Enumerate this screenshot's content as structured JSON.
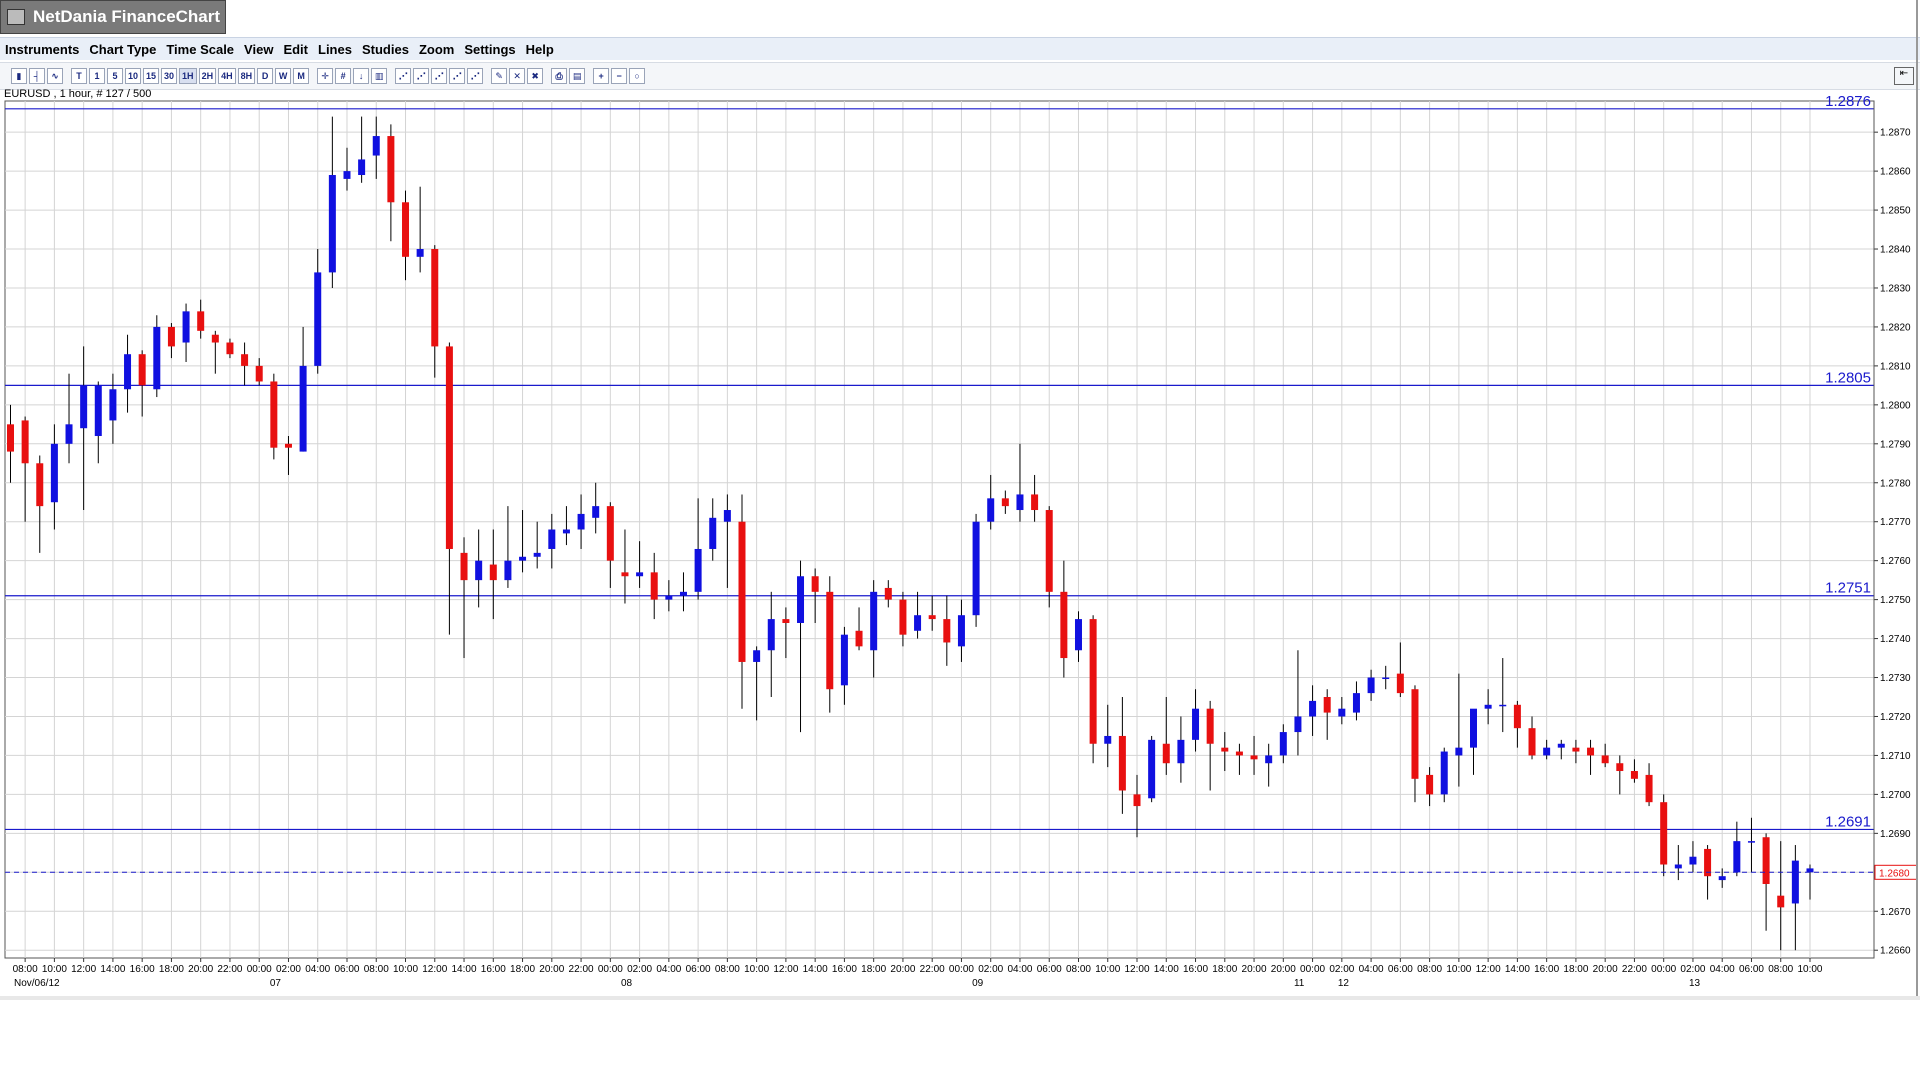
{
  "app": {
    "title": "NetDania FinanceChart"
  },
  "menu": [
    "Instruments",
    "Chart Type",
    "Time Scale",
    "View",
    "Edit",
    "Lines",
    "Studies",
    "Zoom",
    "Settings",
    "Help"
  ],
  "toolbar": {
    "timeframes": [
      "T",
      "1",
      "5",
      "10",
      "15",
      "30",
      "1H",
      "2H",
      "4H",
      "8H",
      "D",
      "W",
      "M"
    ],
    "selected": "1H"
  },
  "instrument": {
    "label": "EURUSD , 1 hour, # 127 / 500"
  },
  "colors": {
    "up": "#1010e0",
    "down": "#e81010",
    "level_line": "#1a1acc",
    "current_price": "#e81010",
    "grid": "#d4d4d4"
  },
  "chart_data": {
    "type": "candlestick",
    "symbol": "EURUSD",
    "interval": "1 hour",
    "ylim": [
      1.2658,
      1.2878
    ],
    "y_ticks": [
      "1.2660",
      "1.2670",
      "1.2680",
      "1.2690",
      "1.2700",
      "1.2710",
      "1.2720",
      "1.2730",
      "1.2740",
      "1.2750",
      "1.2760",
      "1.2770",
      "1.2780",
      "1.2790",
      "1.2800",
      "1.2810",
      "1.2820",
      "1.2830",
      "1.2840",
      "1.2850",
      "1.2860",
      "1.2870"
    ],
    "current_price": "1.2680",
    "horizontal_levels": [
      "1.2876",
      "1.2805",
      "1.2751",
      "1.2691"
    ],
    "x_time_labels": [
      "08:00",
      "10:00",
      "12:00",
      "14:00",
      "16:00",
      "18:00",
      "20:00",
      "22:00",
      "00:00",
      "02:00",
      "04:00",
      "06:00",
      "08:00",
      "10:00",
      "12:00",
      "14:00",
      "16:00",
      "18:00",
      "20:00",
      "22:00",
      "00:00",
      "02:00",
      "04:00",
      "06:00",
      "08:00",
      "10:00",
      "12:00",
      "14:00",
      "16:00",
      "18:00",
      "20:00",
      "22:00",
      "00:00",
      "02:00",
      "04:00",
      "06:00",
      "08:00",
      "10:00",
      "12:00",
      "14:00",
      "16:00",
      "18:00",
      "20:00",
      "20:00",
      "00:00",
      "02:00",
      "04:00",
      "06:00",
      "08:00",
      "10:00",
      "12:00",
      "14:00",
      "16:00",
      "18:00",
      "20:00",
      "22:00",
      "00:00",
      "02:00",
      "04:00",
      "06:00",
      "08:00",
      "10:00"
    ],
    "x_date_labels": [
      {
        "label": "Nov/06/12",
        "at_candle": 0
      },
      {
        "label": "07",
        "at_candle": 18
      },
      {
        "label": "08",
        "at_candle": 42
      },
      {
        "label": "09",
        "at_candle": 66
      },
      {
        "label": "11",
        "at_candle": 88
      },
      {
        "label": "12",
        "at_candle": 91
      },
      {
        "label": "13",
        "at_candle": 115
      }
    ],
    "ohlc": [
      [
        1.2795,
        1.28,
        1.278,
        1.2788
      ],
      [
        1.2796,
        1.2797,
        1.277,
        1.2785
      ],
      [
        1.2785,
        1.2787,
        1.2762,
        1.2774
      ],
      [
        1.2775,
        1.2795,
        1.2768,
        1.279
      ],
      [
        1.279,
        1.2808,
        1.2785,
        1.2795
      ],
      [
        1.2794,
        1.2815,
        1.2773,
        1.2805
      ],
      [
        1.2792,
        1.2806,
        1.2785,
        1.2805
      ],
      [
        1.2796,
        1.2808,
        1.279,
        1.2804
      ],
      [
        1.2804,
        1.2818,
        1.2798,
        1.2813
      ],
      [
        1.2813,
        1.2814,
        1.2797,
        1.2805
      ],
      [
        1.2804,
        1.2823,
        1.2802,
        1.282
      ],
      [
        1.282,
        1.2821,
        1.2812,
        1.2815
      ],
      [
        1.2816,
        1.2826,
        1.2811,
        1.2824
      ],
      [
        1.2824,
        1.2827,
        1.2817,
        1.2819
      ],
      [
        1.2818,
        1.2819,
        1.2808,
        1.2816
      ],
      [
        1.2816,
        1.2817,
        1.2812,
        1.2813
      ],
      [
        1.2813,
        1.2816,
        1.2805,
        1.281
      ],
      [
        1.281,
        1.2812,
        1.2805,
        1.2806
      ],
      [
        1.2806,
        1.2808,
        1.2786,
        1.2789
      ],
      [
        1.279,
        1.2792,
        1.2782,
        1.2789
      ],
      [
        1.2788,
        1.282,
        1.2788,
        1.281
      ],
      [
        1.281,
        1.284,
        1.2808,
        1.2834
      ],
      [
        1.2834,
        1.2874,
        1.283,
        1.2859
      ],
      [
        1.2858,
        1.2866,
        1.2855,
        1.286
      ],
      [
        1.2859,
        1.2874,
        1.2857,
        1.2863
      ],
      [
        1.2864,
        1.2874,
        1.2858,
        1.2869
      ],
      [
        1.2869,
        1.2872,
        1.2842,
        1.2852
      ],
      [
        1.2852,
        1.2855,
        1.2832,
        1.2838
      ],
      [
        1.2838,
        1.2856,
        1.2834,
        1.284
      ],
      [
        1.284,
        1.2841,
        1.2807,
        1.2815
      ],
      [
        1.2815,
        1.2816,
        1.2741,
        1.2763
      ],
      [
        1.2762,
        1.2766,
        1.2735,
        1.2755
      ],
      [
        1.2755,
        1.2768,
        1.2748,
        1.276
      ],
      [
        1.2759,
        1.2768,
        1.2745,
        1.2755
      ],
      [
        1.2755,
        1.2774,
        1.2753,
        1.276
      ],
      [
        1.276,
        1.2773,
        1.2757,
        1.2761
      ],
      [
        1.2761,
        1.277,
        1.2758,
        1.2762
      ],
      [
        1.2763,
        1.2772,
        1.2758,
        1.2768
      ],
      [
        1.2767,
        1.2774,
        1.2764,
        1.2768
      ],
      [
        1.2768,
        1.2777,
        1.2763,
        1.2772
      ],
      [
        1.2771,
        1.278,
        1.2767,
        1.2774
      ],
      [
        1.2774,
        1.2775,
        1.2753,
        1.276
      ],
      [
        1.2757,
        1.2768,
        1.2749,
        1.2756
      ],
      [
        1.2756,
        1.2765,
        1.2753,
        1.2757
      ],
      [
        1.2757,
        1.2762,
        1.2745,
        1.275
      ],
      [
        1.275,
        1.2755,
        1.2747,
        1.2751
      ],
      [
        1.2751,
        1.2757,
        1.2747,
        1.2752
      ],
      [
        1.2752,
        1.2776,
        1.275,
        1.2763
      ],
      [
        1.2763,
        1.2776,
        1.276,
        1.2771
      ],
      [
        1.277,
        1.2777,
        1.2753,
        1.2773
      ],
      [
        1.277,
        1.2777,
        1.2722,
        1.2734
      ],
      [
        1.2734,
        1.2738,
        1.2719,
        1.2737
      ],
      [
        1.2737,
        1.2752,
        1.2725,
        1.2745
      ],
      [
        1.2745,
        1.2748,
        1.2735,
        1.2744
      ],
      [
        1.2744,
        1.276,
        1.2716,
        1.2756
      ],
      [
        1.2756,
        1.2758,
        1.2744,
        1.2752
      ],
      [
        1.2752,
        1.2756,
        1.2721,
        1.2727
      ],
      [
        1.2728,
        1.2743,
        1.2723,
        1.2741
      ],
      [
        1.2742,
        1.2748,
        1.2737,
        1.2738
      ],
      [
        1.2737,
        1.2755,
        1.273,
        1.2752
      ],
      [
        1.2753,
        1.2755,
        1.2748,
        1.275
      ],
      [
        1.275,
        1.2752,
        1.2738,
        1.2741
      ],
      [
        1.2742,
        1.2752,
        1.274,
        1.2746
      ],
      [
        1.2746,
        1.2751,
        1.2742,
        1.2745
      ],
      [
        1.2745,
        1.2751,
        1.2733,
        1.2739
      ],
      [
        1.2738,
        1.275,
        1.2734,
        1.2746
      ],
      [
        1.2746,
        1.2772,
        1.2743,
        1.277
      ],
      [
        1.277,
        1.2782,
        1.2768,
        1.2776
      ],
      [
        1.2776,
        1.2778,
        1.2772,
        1.2774
      ],
      [
        1.2773,
        1.279,
        1.277,
        1.2777
      ],
      [
        1.2777,
        1.2782,
        1.277,
        1.2773
      ],
      [
        1.2773,
        1.2774,
        1.2748,
        1.2752
      ],
      [
        1.2752,
        1.276,
        1.273,
        1.2735
      ],
      [
        1.2737,
        1.2747,
        1.2734,
        1.2745
      ],
      [
        1.2745,
        1.2746,
        1.2708,
        1.2713
      ],
      [
        1.2713,
        1.2723,
        1.2707,
        1.2715
      ],
      [
        1.2715,
        1.2725,
        1.2695,
        1.2701
      ],
      [
        1.27,
        1.2705,
        1.2689,
        1.2697
      ],
      [
        1.2699,
        1.2715,
        1.2698,
        1.2714
      ],
      [
        1.2713,
        1.2725,
        1.2705,
        1.2708
      ],
      [
        1.2708,
        1.272,
        1.2703,
        1.2714
      ],
      [
        1.2714,
        1.2727,
        1.2711,
        1.2722
      ],
      [
        1.2722,
        1.2724,
        1.2701,
        1.2713
      ],
      [
        1.2712,
        1.2716,
        1.2706,
        1.2711
      ],
      [
        1.2711,
        1.2713,
        1.2705,
        1.271
      ],
      [
        1.271,
        1.2715,
        1.2705,
        1.2709
      ],
      [
        1.2708,
        1.2713,
        1.2702,
        1.271
      ],
      [
        1.271,
        1.2718,
        1.2708,
        1.2716
      ],
      [
        1.2716,
        1.2737,
        1.271,
        1.272
      ],
      [
        1.272,
        1.2728,
        1.2715,
        1.2724
      ],
      [
        1.2725,
        1.2727,
        1.2714,
        1.2721
      ],
      [
        1.272,
        1.2725,
        1.2718,
        1.2722
      ],
      [
        1.2721,
        1.2729,
        1.2719,
        1.2726
      ],
      [
        1.2726,
        1.2732,
        1.2724,
        1.273
      ],
      [
        1.273,
        1.2733,
        1.2727,
        1.273
      ],
      [
        1.2731,
        1.2739,
        1.2725,
        1.2726
      ],
      [
        1.2727,
        1.2728,
        1.2698,
        1.2704
      ],
      [
        1.2705,
        1.2707,
        1.2697,
        1.27
      ],
      [
        1.27,
        1.2712,
        1.2698,
        1.2711
      ],
      [
        1.271,
        1.2731,
        1.2702,
        1.2712
      ],
      [
        1.2712,
        1.2721,
        1.2705,
        1.2722
      ],
      [
        1.2722,
        1.2727,
        1.2718,
        1.2723
      ],
      [
        1.2723,
        1.2735,
        1.2716,
        1.2723
      ],
      [
        1.2723,
        1.2724,
        1.2712,
        1.2717
      ],
      [
        1.2717,
        1.272,
        1.2709,
        1.271
      ],
      [
        1.271,
        1.2714,
        1.2709,
        1.2712
      ],
      [
        1.2712,
        1.2714,
        1.2709,
        1.2713
      ],
      [
        1.2712,
        1.2714,
        1.2708,
        1.2711
      ],
      [
        1.2712,
        1.2714,
        1.2705,
        1.271
      ],
      [
        1.271,
        1.2713,
        1.2707,
        1.2708
      ],
      [
        1.2708,
        1.271,
        1.27,
        1.2706
      ],
      [
        1.2706,
        1.2709,
        1.2703,
        1.2704
      ],
      [
        1.2705,
        1.2708,
        1.2697,
        1.2698
      ],
      [
        1.2698,
        1.27,
        1.2679,
        1.2682
      ],
      [
        1.2681,
        1.2687,
        1.2678,
        1.2682
      ],
      [
        1.2682,
        1.2688,
        1.268,
        1.2684
      ],
      [
        1.2686,
        1.2687,
        1.2673,
        1.2679
      ],
      [
        1.2678,
        1.2681,
        1.2676,
        1.2679
      ],
      [
        1.268,
        1.2693,
        1.2679,
        1.2688
      ],
      [
        1.2688,
        1.2694,
        1.268,
        1.2688
      ],
      [
        1.2689,
        1.269,
        1.2665,
        1.2677
      ],
      [
        1.2674,
        1.2688,
        1.266,
        1.2671
      ],
      [
        1.2672,
        1.2687,
        1.266,
        1.2683
      ],
      [
        1.268,
        1.2682,
        1.2673,
        1.2681
      ]
    ]
  }
}
